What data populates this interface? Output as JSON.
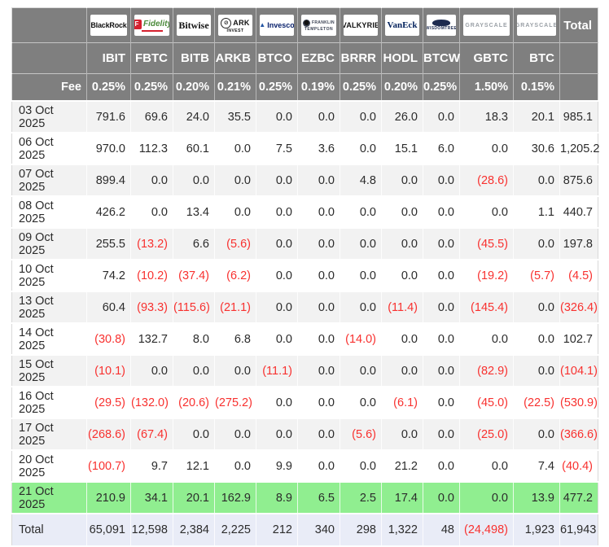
{
  "accent_colors": {
    "header_bg": "#7f7f7f",
    "negative": "#f8312f",
    "highlight_row": "#90ee90",
    "total_row": "#e9ecf7",
    "stripe": "#f2f2f2"
  },
  "table": {
    "corner_label": "",
    "total_header": "Total",
    "fee_label": "Fee",
    "total_row_label": "Total",
    "columns": [
      {
        "brand": "blackrock",
        "logo_badge": "",
        "logo_main": "BlackRock",
        "logo_sub": "",
        "ticker": "IBIT",
        "fee": "0.25%"
      },
      {
        "brand": "fidelity",
        "logo_badge": "F",
        "logo_main": "Fidelity",
        "logo_sub": " ",
        "ticker": "FBTC",
        "fee": "0.25%"
      },
      {
        "brand": "bitwise",
        "logo_badge": "",
        "logo_main": "Bitwise",
        "logo_sub": "",
        "ticker": "BITB",
        "fee": "0.20%"
      },
      {
        "brand": "ark",
        "logo_badge": "⊘",
        "logo_main": "ARK",
        "logo_sub": "INVEST",
        "ticker": "ARKB",
        "fee": "0.21%"
      },
      {
        "brand": "invesco",
        "logo_badge": "▲",
        "logo_main": "Invesco",
        "logo_sub": "",
        "ticker": "BTCO",
        "fee": "0.25%"
      },
      {
        "brand": "franklin",
        "logo_badge": "●",
        "logo_main": "FRANKLIN",
        "logo_sub": "TEMPLETON",
        "ticker": "EZBC",
        "fee": "0.19%"
      },
      {
        "brand": "valkyrie",
        "logo_badge": "",
        "logo_main": "VALKYRIE",
        "logo_sub": "",
        "ticker": "BRRR",
        "fee": "0.25%"
      },
      {
        "brand": "vaneck",
        "logo_badge": "",
        "logo_main": "VanEck",
        "logo_sub": "",
        "ticker": "HODL",
        "fee": "0.20%"
      },
      {
        "brand": "wisdomtree",
        "logo_badge": " ",
        "logo_main": "",
        "logo_sub": "WISDOMTREE",
        "ticker": "BTCW",
        "fee": "0.25%"
      },
      {
        "brand": "grayscale",
        "logo_badge": "",
        "logo_main": "GRAYSCALE",
        "logo_sub": "",
        "ticker": "GBTC",
        "fee": "1.50%"
      },
      {
        "brand": "grayscale",
        "logo_badge": "",
        "logo_main": "GRAYSCALE",
        "logo_sub": "",
        "ticker": "BTC",
        "fee": "0.15%"
      }
    ],
    "rows": [
      {
        "date": "03 Oct 2025",
        "highlight": false,
        "values": [
          "791.6",
          "69.6",
          "24.0",
          "35.5",
          "0.0",
          "0.0",
          "0.0",
          "26.0",
          "0.0",
          "18.3",
          "20.1",
          "985.1"
        ]
      },
      {
        "date": "06 Oct 2025",
        "highlight": false,
        "values": [
          "970.0",
          "112.3",
          "60.1",
          "0.0",
          "7.5",
          "3.6",
          "0.0",
          "15.1",
          "6.0",
          "0.0",
          "30.6",
          "1,205.2"
        ]
      },
      {
        "date": "07 Oct 2025",
        "highlight": false,
        "values": [
          "899.4",
          "0.0",
          "0.0",
          "0.0",
          "0.0",
          "0.0",
          "4.8",
          "0.0",
          "0.0",
          "(28.6)",
          "0.0",
          "875.6"
        ]
      },
      {
        "date": "08 Oct 2025",
        "highlight": false,
        "values": [
          "426.2",
          "0.0",
          "13.4",
          "0.0",
          "0.0",
          "0.0",
          "0.0",
          "0.0",
          "0.0",
          "0.0",
          "1.1",
          "440.7"
        ]
      },
      {
        "date": "09 Oct 2025",
        "highlight": false,
        "values": [
          "255.5",
          "(13.2)",
          "6.6",
          "(5.6)",
          "0.0",
          "0.0",
          "0.0",
          "0.0",
          "0.0",
          "(45.5)",
          "0.0",
          "197.8"
        ]
      },
      {
        "date": "10 Oct 2025",
        "highlight": false,
        "values": [
          "74.2",
          "(10.2)",
          "(37.4)",
          "(6.2)",
          "0.0",
          "0.0",
          "0.0",
          "0.0",
          "0.0",
          "(19.2)",
          "(5.7)",
          "(4.5)"
        ]
      },
      {
        "date": "13 Oct 2025",
        "highlight": false,
        "values": [
          "60.4",
          "(93.3)",
          "(115.6)",
          "(21.1)",
          "0.0",
          "0.0",
          "0.0",
          "(11.4)",
          "0.0",
          "(145.4)",
          "0.0",
          "(326.4)"
        ]
      },
      {
        "date": "14 Oct 2025",
        "highlight": false,
        "values": [
          "(30.8)",
          "132.7",
          "8.0",
          "6.8",
          "0.0",
          "0.0",
          "(14.0)",
          "0.0",
          "0.0",
          "0.0",
          "0.0",
          "102.7"
        ]
      },
      {
        "date": "15 Oct 2025",
        "highlight": false,
        "values": [
          "(10.1)",
          "0.0",
          "0.0",
          "0.0",
          "(11.1)",
          "0.0",
          "0.0",
          "0.0",
          "0.0",
          "(82.9)",
          "0.0",
          "(104.1)"
        ]
      },
      {
        "date": "16 Oct 2025",
        "highlight": false,
        "values": [
          "(29.5)",
          "(132.0)",
          "(20.6)",
          "(275.2)",
          "0.0",
          "0.0",
          "0.0",
          "(6.1)",
          "0.0",
          "(45.0)",
          "(22.5)",
          "(530.9)"
        ]
      },
      {
        "date": "17 Oct 2025",
        "highlight": false,
        "values": [
          "(268.6)",
          "(67.4)",
          "0.0",
          "0.0",
          "0.0",
          "0.0",
          "(5.6)",
          "0.0",
          "0.0",
          "(25.0)",
          "0.0",
          "(366.6)"
        ]
      },
      {
        "date": "20 Oct 2025",
        "highlight": false,
        "values": [
          "(100.7)",
          "9.7",
          "12.1",
          "0.0",
          "9.9",
          "0.0",
          "0.0",
          "21.2",
          "0.0",
          "0.0",
          "7.4",
          "(40.4)"
        ]
      },
      {
        "date": "21 Oct 2025",
        "highlight": true,
        "values": [
          "210.9",
          "34.1",
          "20.1",
          "162.9",
          "8.9",
          "6.5",
          "2.5",
          "17.4",
          "0.0",
          "0.0",
          "13.9",
          "477.2"
        ]
      }
    ],
    "totals": [
      "65,091",
      "12,598",
      "2,384",
      "2,225",
      "212",
      "340",
      "298",
      "1,322",
      "48",
      "(24,498)",
      "1,923",
      "61,943"
    ]
  }
}
